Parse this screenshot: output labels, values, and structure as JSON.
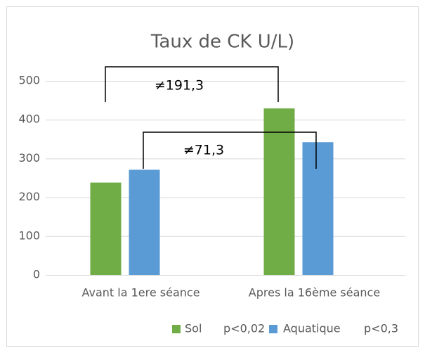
{
  "chart_data": {
    "type": "bar",
    "title": "Taux de CK U/L)",
    "categories": [
      "Avant la 1ere séance",
      "Apres la 16ème séance"
    ],
    "series": [
      {
        "name": "Sol",
        "note": "p<0,02",
        "color": "#70ad47",
        "values": [
          238,
          429
        ]
      },
      {
        "name": "Aquatique",
        "note": "p<0,3",
        "color": "#5b9bd5",
        "values": [
          271,
          342
        ]
      }
    ],
    "annotations": [
      "≠191,3",
      "≠71,3"
    ],
    "ylim": [
      0,
      500
    ],
    "yticks": [
      0,
      100,
      200,
      300,
      400,
      500
    ],
    "grid": true
  }
}
